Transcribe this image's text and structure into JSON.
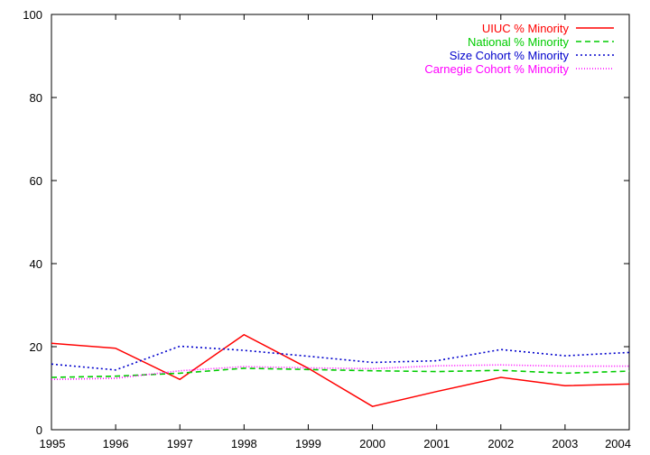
{
  "chart_data": {
    "type": "line",
    "title": "",
    "xlabel": "",
    "ylabel": "",
    "x": [
      1995,
      1996,
      1997,
      1998,
      1999,
      2000,
      2001,
      2002,
      2003,
      2004
    ],
    "xlim": [
      1995,
      2004
    ],
    "ylim": [
      0,
      100
    ],
    "xticks": [
      "1995",
      "1996",
      "1997",
      "1998",
      "1999",
      "2000",
      "2001",
      "2002",
      "2003",
      "2004"
    ],
    "yticks": [
      "0",
      "20",
      "40",
      "60",
      "80",
      "100"
    ],
    "ytick_values": [
      0,
      20,
      40,
      60,
      80,
      100
    ],
    "grid": false,
    "legend_position": "top-right",
    "series": [
      {
        "name": "UIUC % Minority",
        "color": "#ff0000",
        "dash": "solid",
        "values": [
          20.8,
          19.6,
          12.1,
          22.9,
          14.8,
          5.6,
          9.2,
          12.6,
          10.6,
          11.0
        ]
      },
      {
        "name": "National % Minority",
        "color": "#00cc00",
        "dash": "dashed",
        "values": [
          12.6,
          12.9,
          13.6,
          14.8,
          14.5,
          14.2,
          14.0,
          14.3,
          13.6,
          14.1
        ]
      },
      {
        "name": "Size Cohort % Minority",
        "color": "#0000cc",
        "dash": "dotted",
        "values": [
          15.8,
          14.4,
          20.1,
          19.1,
          17.7,
          16.2,
          16.6,
          19.3,
          17.8,
          18.6
        ]
      },
      {
        "name": "Carnegie Cohort % Minority",
        "color": "#ff00ff",
        "dash": "finedotted",
        "values": [
          12.1,
          12.4,
          14.2,
          15.2,
          14.9,
          14.7,
          15.4,
          15.6,
          15.3,
          15.3
        ]
      }
    ]
  }
}
